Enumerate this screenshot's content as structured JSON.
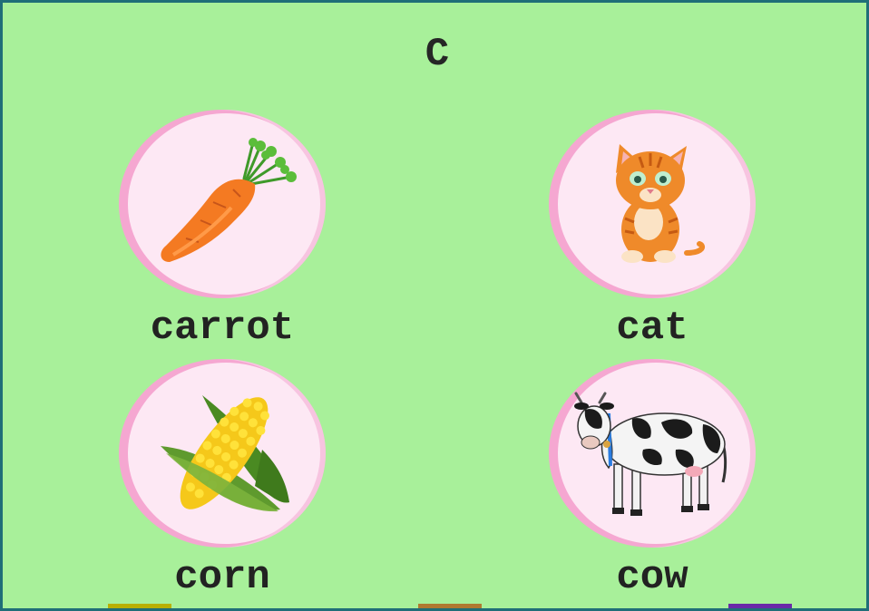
{
  "header": {
    "letter": "C"
  },
  "cards": [
    {
      "word": "carrot",
      "icon": "carrot-icon"
    },
    {
      "word": "cat",
      "icon": "cat-icon"
    },
    {
      "word": "corn",
      "icon": "corn-icon"
    },
    {
      "word": "cow",
      "icon": "cow-icon"
    }
  ],
  "colors": {
    "background": "#a8f09a",
    "border": "#1f6e78",
    "circle_outer": "#f5a7d1",
    "circle_inner": "#fde8f4",
    "text": "#222222"
  }
}
